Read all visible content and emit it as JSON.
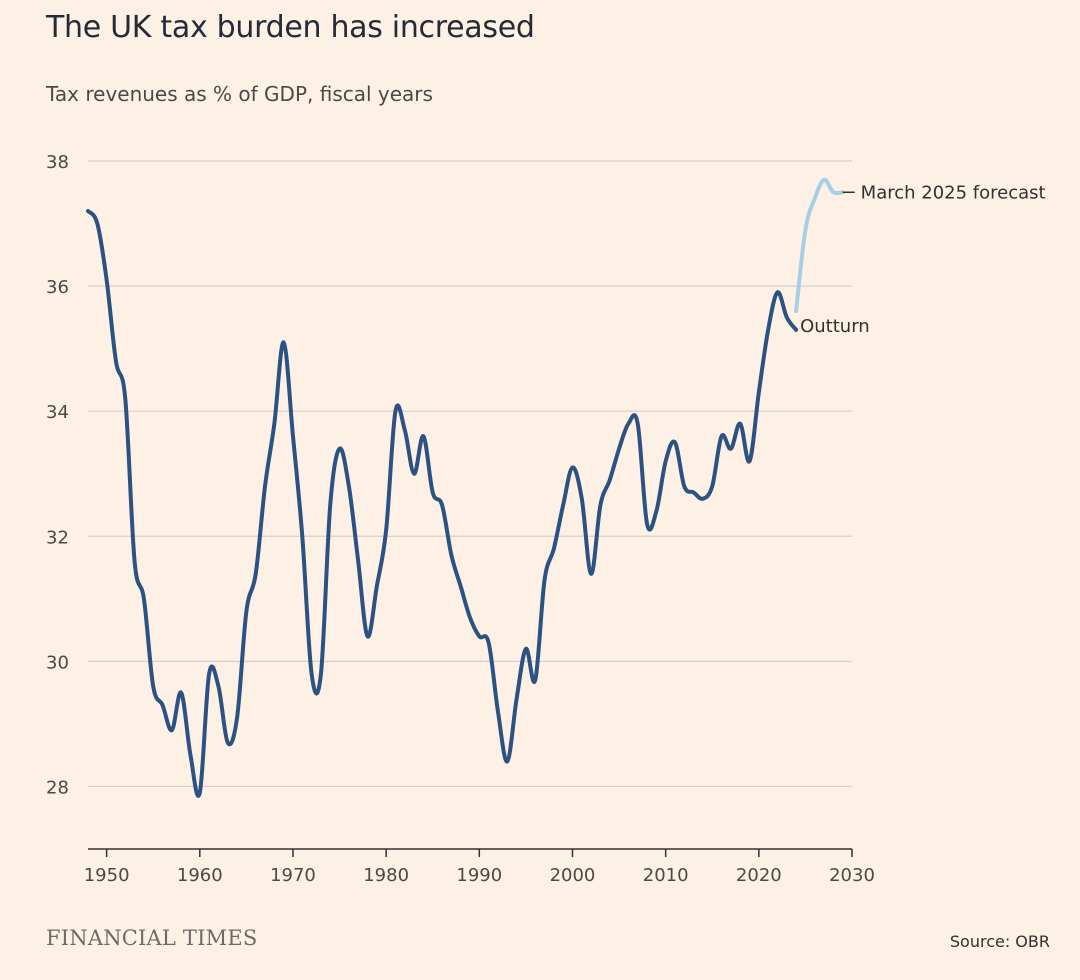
{
  "header": {
    "title": "The UK tax burden has increased",
    "subtitle": "Tax revenues as % of GDP, fiscal years"
  },
  "footer": {
    "brand": "FINANCIAL TIMES",
    "source": "Source: OBR"
  },
  "colors": {
    "background": "#fdf1e6",
    "outturn": "#2c5282",
    "forecast": "#a6cfe6",
    "grid": "#d8cfc6",
    "axis": "#33302e",
    "text": "#33302e"
  },
  "chart_data": {
    "type": "line",
    "title": "The UK tax burden has increased",
    "subtitle": "Tax revenues as % of GDP, fiscal years",
    "xlim": [
      1948,
      2030
    ],
    "ylim": [
      27,
      38
    ],
    "xticks": [
      "1950",
      "1960",
      "1970",
      "1980",
      "1990",
      "2000",
      "2010",
      "2020",
      "2030"
    ],
    "yticks": [
      "28",
      "30",
      "32",
      "34",
      "36",
      "38"
    ],
    "grid": true,
    "series": [
      {
        "name": "Outturn",
        "x": [
          1948,
          1949,
          1950,
          1951,
          1952,
          1953,
          1954,
          1955,
          1956,
          1957,
          1958,
          1959,
          1960,
          1961,
          1962,
          1963,
          1964,
          1965,
          1966,
          1967,
          1968,
          1969,
          1970,
          1971,
          1972,
          1973,
          1974,
          1975,
          1976,
          1977,
          1978,
          1979,
          1980,
          1981,
          1982,
          1983,
          1984,
          1985,
          1986,
          1987,
          1988,
          1989,
          1990,
          1991,
          1992,
          1993,
          1994,
          1995,
          1996,
          1997,
          1998,
          1999,
          2000,
          2001,
          2002,
          2003,
          2004,
          2005,
          2006,
          2007,
          2008,
          2009,
          2010,
          2011,
          2012,
          2013,
          2014,
          2015,
          2016,
          2017,
          2018,
          2019,
          2020,
          2021,
          2022,
          2023,
          2024
        ],
        "values": [
          37.2,
          37.0,
          36.1,
          34.8,
          34.2,
          31.6,
          31.0,
          29.6,
          29.3,
          28.9,
          29.5,
          28.5,
          27.9,
          29.8,
          29.6,
          28.7,
          29.1,
          30.8,
          31.4,
          32.8,
          33.8,
          35.1,
          33.6,
          32.0,
          29.8,
          29.8,
          32.5,
          33.4,
          32.8,
          31.6,
          30.4,
          31.2,
          32.1,
          34.0,
          33.7,
          33.0,
          33.6,
          32.7,
          32.5,
          31.7,
          31.2,
          30.7,
          30.4,
          30.3,
          29.2,
          28.4,
          29.4,
          30.2,
          29.7,
          31.3,
          31.8,
          32.5,
          33.1,
          32.6,
          31.4,
          32.5,
          32.9,
          33.4,
          33.8,
          33.8,
          32.2,
          32.4,
          33.2,
          33.5,
          32.8,
          32.7,
          32.6,
          32.8,
          33.6,
          33.4,
          33.8,
          33.2,
          34.3,
          35.3,
          35.9,
          35.5,
          35.3
        ],
        "color": "#2c5282",
        "label": "Outturn"
      },
      {
        "name": "March 2025 forecast",
        "x": [
          2024,
          2025,
          2026,
          2027,
          2028,
          2029
        ],
        "values": [
          35.6,
          36.9,
          37.4,
          37.7,
          37.5,
          37.5
        ],
        "color": "#a6cfe6",
        "label": "March 2025 forecast"
      }
    ]
  }
}
